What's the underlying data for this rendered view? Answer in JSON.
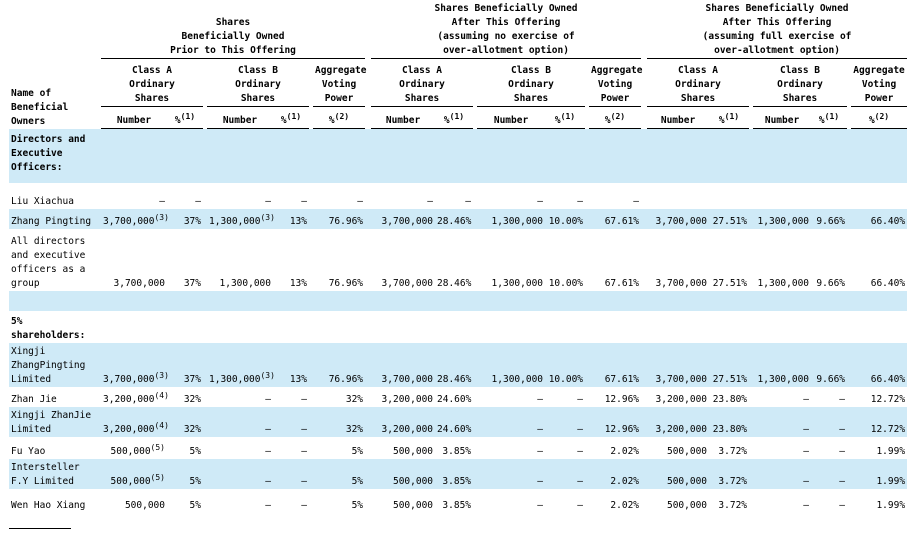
{
  "header": {
    "group_prior": "Shares\nBeneficially Owned\nPrior to This Offering",
    "group_no_exercise": "Shares Beneficially Owned\nAfter This Offering\n(assuming no exercise of\nover-allotment option)",
    "group_full_exercise": "Shares Beneficially Owned\nAfter This Offering\n(assuming full exercise of\nover-allotment option)",
    "name_col": "Name of\nBeneficial\nOwners",
    "class_a": "Class A\nOrdinary\nShares",
    "class_b": "Class B\nOrdinary\nShares",
    "voting": "Aggregate\nVoting\nPower",
    "number": "Number",
    "pct": "%",
    "note1": "(1)",
    "note2": "(2)"
  },
  "sections": {
    "directors": "Directors and\nExecutive\nOfficers:",
    "holders": "5%\nshareholders:"
  },
  "rows": [
    {
      "name": "Liu Xiachua",
      "a_num": "—",
      "a_num_note": "",
      "a_pct": "—",
      "b_num": "—",
      "b_num_note": "",
      "b_pct": "—",
      "vote": "—",
      "n_a_num": "—",
      "n_a_pct": "—",
      "n_b_num": "—",
      "n_b_pct": "—",
      "n_vote": "—",
      "f_a_num": "",
      "f_a_pct": "",
      "f_b_num": "",
      "f_b_pct": "",
      "f_vote": ""
    },
    {
      "name": "Zhang Pingting",
      "a_num": "3,700,000",
      "a_num_note": "(3)",
      "a_pct": "37%",
      "b_num": "1,300,000",
      "b_num_note": "(3)",
      "b_pct": "13%",
      "vote": "76.96%",
      "n_a_num": "3,700,000",
      "n_a_pct": "28.46%",
      "n_b_num": "1,300,000",
      "n_b_pct": "10.00%",
      "n_vote": "67.61%",
      "f_a_num": "3,700,000",
      "f_a_pct": "27.51%",
      "f_b_num": "1,300,000",
      "f_b_pct": "9.66%",
      "f_vote": "66.40%"
    },
    {
      "name": "All directors\nand executive\nofficers as a\ngroup",
      "a_num": "3,700,000",
      "a_num_note": "",
      "a_pct": "37%",
      "b_num": "1,300,000",
      "b_num_note": "",
      "b_pct": "13%",
      "vote": "76.96%",
      "n_a_num": "3,700,000",
      "n_a_pct": "28.46%",
      "n_b_num": "1,300,000",
      "n_b_pct": "10.00%",
      "n_vote": "67.61%",
      "f_a_num": "3,700,000",
      "f_a_pct": "27.51%",
      "f_b_num": "1,300,000",
      "f_b_pct": "9.66%",
      "f_vote": "66.40%"
    },
    {
      "name": "Xingji\nZhangPingting\nLimited",
      "a_num": "3,700,000",
      "a_num_note": "(3)",
      "a_pct": "37%",
      "b_num": "1,300,000",
      "b_num_note": "(3)",
      "b_pct": "13%",
      "vote": "76.96%",
      "n_a_num": "3,700,000",
      "n_a_pct": "28.46%",
      "n_b_num": "1,300,000",
      "n_b_pct": "10.00%",
      "n_vote": "67.61%",
      "f_a_num": "3,700,000",
      "f_a_pct": "27.51%",
      "f_b_num": "1,300,000",
      "f_b_pct": "9.66%",
      "f_vote": "66.40%"
    },
    {
      "name": "Zhan Jie",
      "a_num": "3,200,000",
      "a_num_note": "(4)",
      "a_pct": "32%",
      "b_num": "—",
      "b_num_note": "",
      "b_pct": "—",
      "vote": "32%",
      "n_a_num": "3,200,000",
      "n_a_pct": "24.60%",
      "n_b_num": "—",
      "n_b_pct": "—",
      "n_vote": "12.96%",
      "f_a_num": "3,200,000",
      "f_a_pct": "23.80%",
      "f_b_num": "—",
      "f_b_pct": "—",
      "f_vote": "12.72%"
    },
    {
      "name": "Xingji ZhanJie\nLimited",
      "a_num": "3,200,000",
      "a_num_note": "(4)",
      "a_pct": "32%",
      "b_num": "—",
      "b_num_note": "",
      "b_pct": "—",
      "vote": "32%",
      "n_a_num": "3,200,000",
      "n_a_pct": "24.60%",
      "n_b_num": "—",
      "n_b_pct": "—",
      "n_vote": "12.96%",
      "f_a_num": "3,200,000",
      "f_a_pct": "23.80%",
      "f_b_num": "—",
      "f_b_pct": "—",
      "f_vote": "12.72%"
    },
    {
      "name": "Fu Yao",
      "a_num": "500,000",
      "a_num_note": "(5)",
      "a_pct": "5%",
      "b_num": "—",
      "b_num_note": "",
      "b_pct": "—",
      "vote": "5%",
      "n_a_num": "500,000",
      "n_a_pct": "3.85%",
      "n_b_num": "—",
      "n_b_pct": "—",
      "n_vote": "2.02%",
      "f_a_num": "500,000",
      "f_a_pct": "3.72%",
      "f_b_num": "—",
      "f_b_pct": "—",
      "f_vote": "1.99%"
    },
    {
      "name": "Intersteller\nF.Y Limited",
      "a_num": "500,000",
      "a_num_note": "(5)",
      "a_pct": "5%",
      "b_num": "—",
      "b_num_note": "",
      "b_pct": "—",
      "vote": "5%",
      "n_a_num": "500,000",
      "n_a_pct": "3.85%",
      "n_b_num": "—",
      "n_b_pct": "—",
      "n_vote": "2.02%",
      "f_a_num": "500,000",
      "f_a_pct": "3.72%",
      "f_b_num": "—",
      "f_b_pct": "—",
      "f_vote": "1.99%"
    },
    {
      "name": "Wen Hao Xiang",
      "a_num": "500,000",
      "a_num_note": "",
      "a_pct": "5%",
      "b_num": "—",
      "b_num_note": "",
      "b_pct": "—",
      "vote": "5%",
      "n_a_num": "500,000",
      "n_a_pct": "3.85%",
      "n_b_num": "—",
      "n_b_pct": "—",
      "n_vote": "2.02%",
      "f_a_num": "500,000",
      "f_a_pct": "3.72%",
      "f_b_num": "—",
      "f_b_pct": "—",
      "f_vote": "1.99%"
    }
  ]
}
